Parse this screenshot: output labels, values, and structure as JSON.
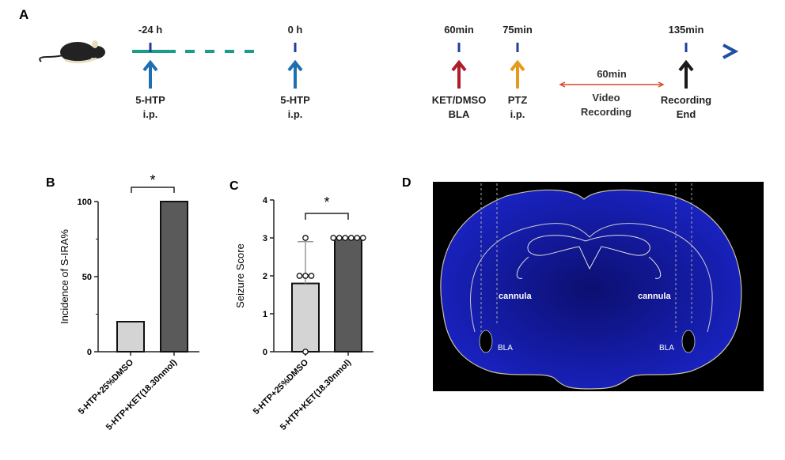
{
  "panels": {
    "a": "A",
    "b": "B",
    "c": "C",
    "d": "D"
  },
  "timeline": {
    "line_color_start": "#1a9b8c",
    "line_color_end": "#1f4fa0",
    "events": [
      {
        "time": "-24 h",
        "label1": "5-HTP",
        "label2": "i.p.",
        "arrow_color": "#1f6fb0"
      },
      {
        "time": "0 h",
        "label1": "5-HTP",
        "label2": "i.p.",
        "arrow_color": "#1f6fb0"
      },
      {
        "time": "60min",
        "label1": "KET/DMSO",
        "label2": "BLA",
        "arrow_color": "#b01c2a"
      },
      {
        "time": "75min",
        "label1": "PTZ",
        "label2": "i.p.",
        "arrow_color": "#e69a1c"
      },
      {
        "time": "135min",
        "label1": "Recording",
        "label2": "End",
        "arrow_color": "#1a1a1a"
      }
    ],
    "interval": {
      "duration": "60min",
      "label1": "Video",
      "label2": "Recording",
      "color": "#d9472b"
    }
  },
  "chart_data": [
    {
      "type": "bar",
      "panel": "B",
      "categories": [
        "5-HTP+25%DMSO",
        "5-HTP+KET(18.30nmol)"
      ],
      "values": [
        20,
        100
      ],
      "colors": [
        "#d4d4d4",
        "#5a5a5a"
      ],
      "ylabel": "Incidence of S-IRA%",
      "ylim": [
        0,
        100
      ],
      "yticks": [
        0,
        50,
        100
      ],
      "significance": "*"
    },
    {
      "type": "bar",
      "panel": "C",
      "categories": [
        "5-HTP+25%DMSO",
        "5-HTP+KET(18.30nmol)"
      ],
      "values": [
        1.8,
        3
      ],
      "error_upper": [
        2.9,
        3
      ],
      "points": [
        [
          3,
          2,
          2,
          2,
          0
        ],
        [
          3,
          3,
          3,
          3,
          3,
          3
        ]
      ],
      "colors": [
        "#d4d4d4",
        "#5a5a5a"
      ],
      "ylabel": "Seizure Score",
      "ylim": [
        0,
        4
      ],
      "yticks": [
        0,
        1,
        2,
        3,
        4
      ],
      "significance": "*"
    }
  ],
  "histology": {
    "left_label": "cannula",
    "right_label": "cannula",
    "left_region": "BLA",
    "right_region": "BLA",
    "stain_color": "#1a1fc0"
  }
}
